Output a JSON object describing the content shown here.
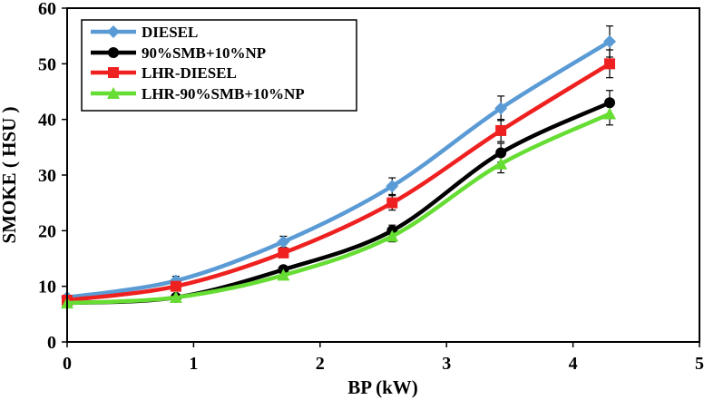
{
  "chart_data": {
    "type": "line",
    "title": "",
    "xlabel": "BP  (kW)",
    "ylabel": "SMOKE ( HSU )",
    "xlim": [
      0,
      5
    ],
    "ylim": [
      0,
      60
    ],
    "xticks": [
      0,
      1,
      2,
      3,
      4,
      5
    ],
    "yticks": [
      0,
      10,
      20,
      30,
      40,
      50,
      60
    ],
    "grid": false,
    "legend_position": "top-left",
    "x": [
      0,
      0.86,
      1.71,
      2.57,
      3.43,
      4.29
    ],
    "series": [
      {
        "name": "DIESEL",
        "color": "#5b9bd5",
        "marker": "diamond",
        "values": [
          8,
          11,
          18,
          28,
          42,
          54
        ],
        "errors": [
          0,
          0.8,
          1.0,
          1.5,
          2.2,
          2.8
        ]
      },
      {
        "name": "90%SMB+10%NP",
        "color": "#000000",
        "marker": "circle",
        "values": [
          7,
          8,
          13,
          20,
          34,
          43
        ],
        "errors": [
          0,
          0.5,
          0.6,
          1.0,
          1.7,
          2.2
        ]
      },
      {
        "name": "LHR-DIESEL",
        "color": "#ee2020",
        "marker": "square",
        "values": [
          7.5,
          10,
          16,
          25,
          38,
          50
        ],
        "errors": [
          0,
          0.7,
          0.8,
          1.3,
          2.0,
          2.5
        ]
      },
      {
        "name": "LHR-90%SMB+10%NP",
        "color": "#66dd33",
        "marker": "triangle",
        "values": [
          7,
          8,
          12,
          19,
          32,
          41
        ],
        "errors": [
          0,
          0.4,
          0.6,
          1.0,
          1.6,
          2.0
        ]
      }
    ]
  }
}
